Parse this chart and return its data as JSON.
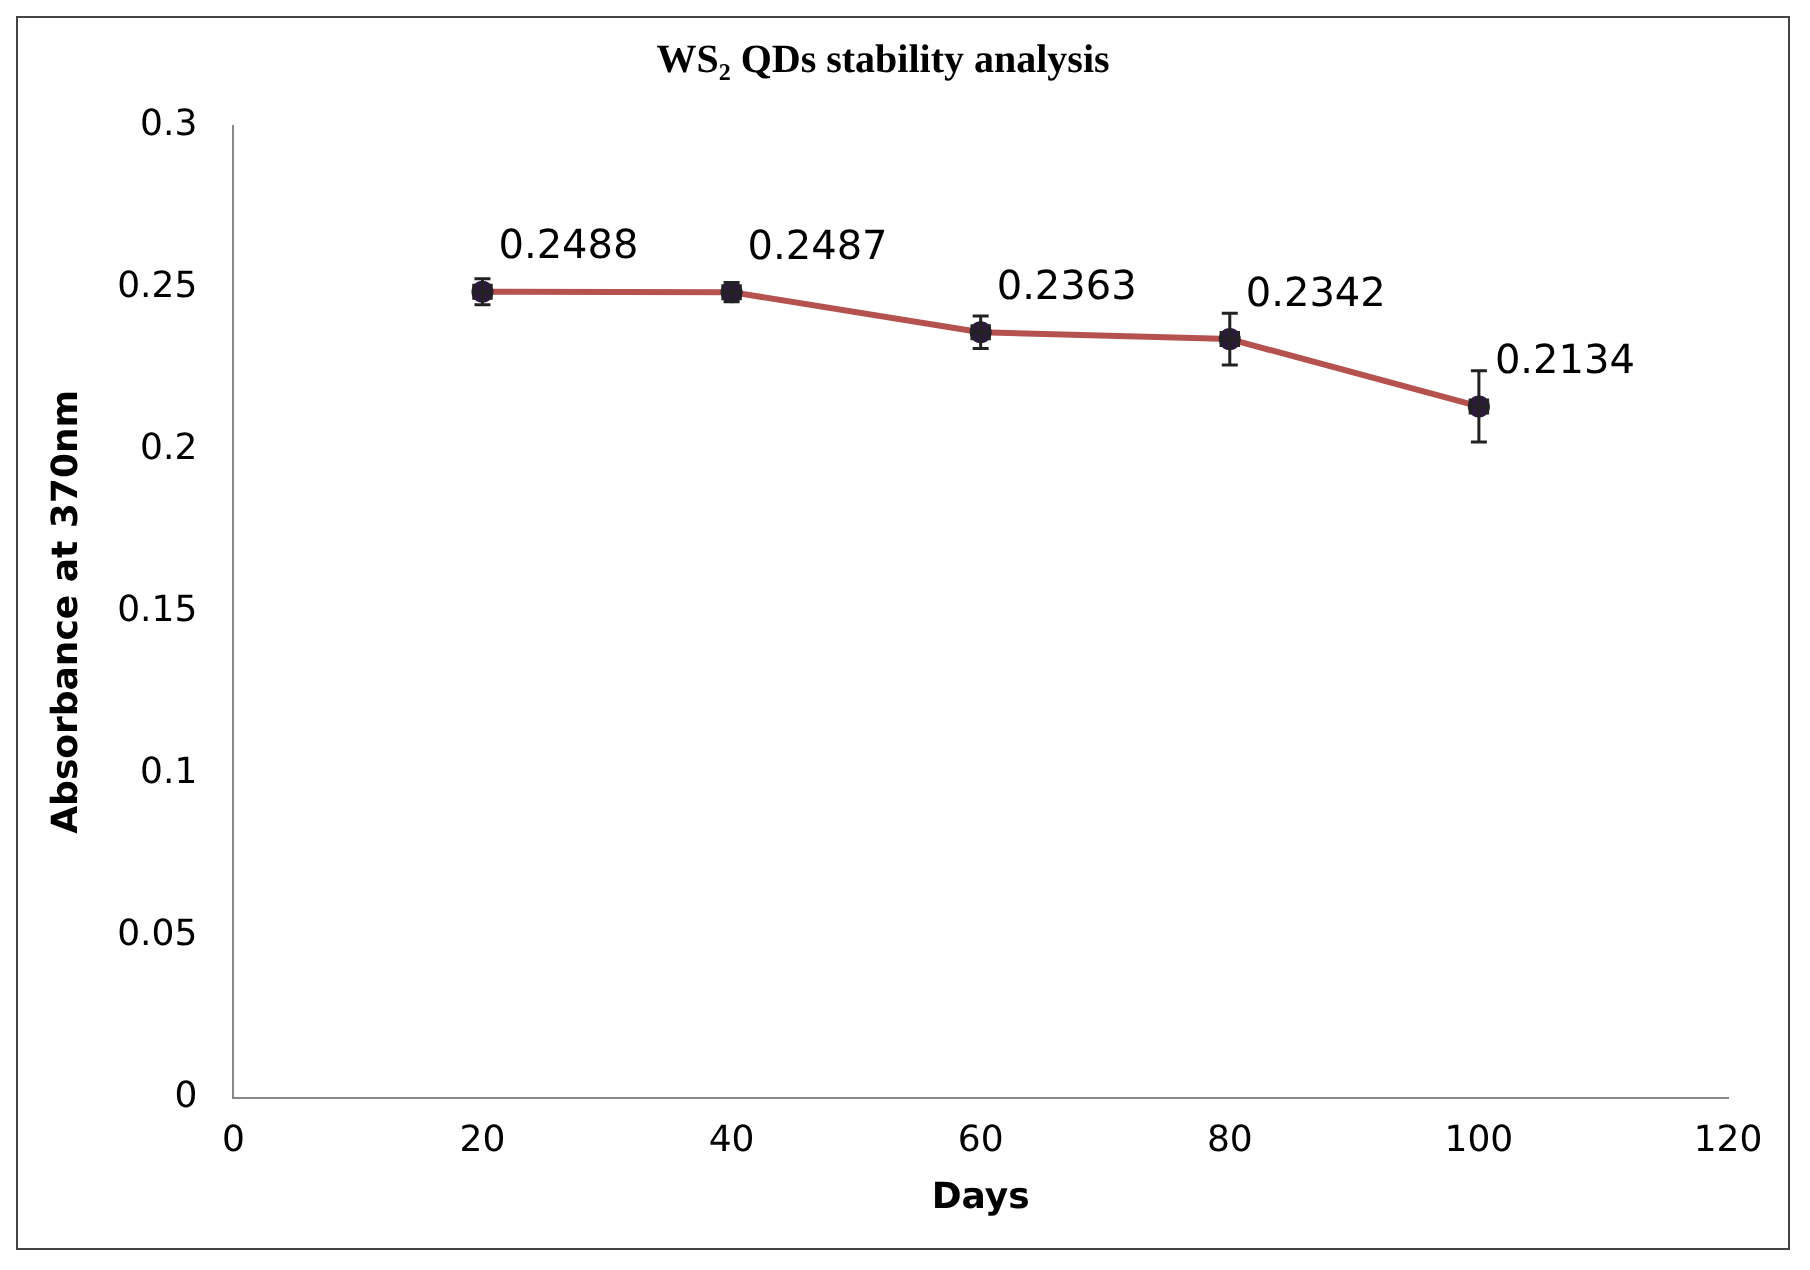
{
  "chart_data": {
    "type": "line",
    "title": "WS₂ QDs stability analysis",
    "xlabel": "Days",
    "ylabel": "Absorbance at 370nm",
    "x": [
      20,
      40,
      60,
      80,
      100
    ],
    "series": [
      {
        "color": "#b5524f",
        "values": [
          0.2488,
          0.2487,
          0.2363,
          0.2342,
          0.2134
        ],
        "errors": [
          0.004,
          0.003,
          0.005,
          0.008,
          0.011
        ],
        "xerrors": [
          0.7,
          0.7,
          0.7,
          0.7,
          0.7
        ]
      }
    ],
    "xlim": [
      0,
      120
    ],
    "xticks": [
      0,
      20,
      40,
      60,
      80,
      100,
      120
    ],
    "ylim": [
      0,
      0.3
    ],
    "yticks": [
      0,
      0.05,
      0.1,
      0.15,
      0.2,
      0.25,
      0.3
    ],
    "grid": false,
    "legend": false,
    "marker": "circle",
    "line_style": "solid",
    "data_labels": true
  }
}
